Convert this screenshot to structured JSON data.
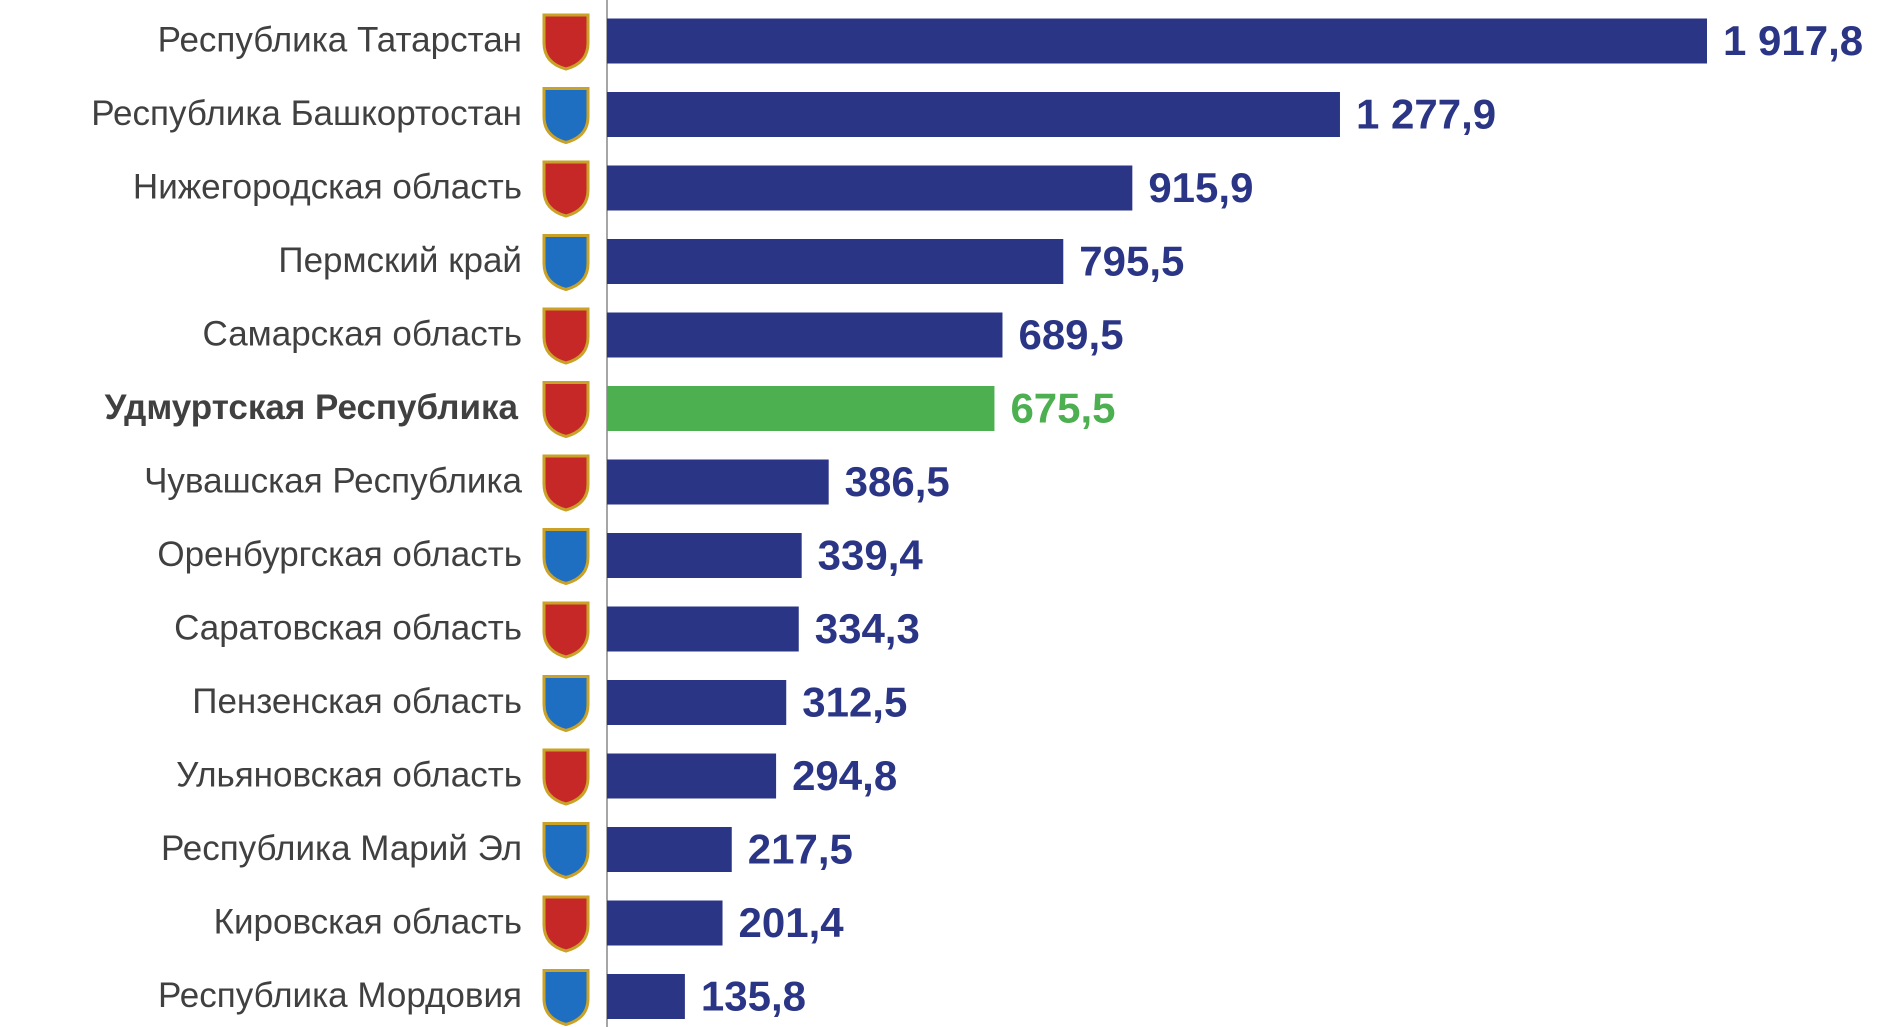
{
  "chart_data": {
    "type": "barh",
    "categories": [
      "Республика Татарстан",
      "Республика Башкортостан",
      "Нижегородская область",
      "Пермский край",
      "Самарская область",
      "Удмуртская Республика",
      "Чувашская Республика",
      "Оренбургская область",
      "Саратовская область",
      "Пензенская область",
      "Ульяновская область",
      "Республика  Марий Эл",
      "Кировская область",
      "Республика Мордовия"
    ],
    "values": [
      1917.8,
      1277.9,
      915.9,
      795.5,
      689.5,
      675.5,
      386.5,
      339.4,
      334.3,
      312.5,
      294.8,
      217.5,
      201.4,
      135.8
    ],
    "value_labels": [
      "1 917,8",
      "1 277,9",
      "915,9",
      "795,5",
      "689,5",
      "675,5",
      "386,5",
      "339,4",
      "334,3",
      "312,5",
      "294,8",
      "217,5",
      "201,4",
      "135,8"
    ],
    "colors": [
      "#2b3585",
      "#2b3585",
      "#2b3585",
      "#2b3585",
      "#2b3585",
      "#4caf50",
      "#2b3585",
      "#2b3585",
      "#2b3585",
      "#2b3585",
      "#2b3585",
      "#2b3585",
      "#2b3585",
      "#2b3585"
    ]
  }
}
